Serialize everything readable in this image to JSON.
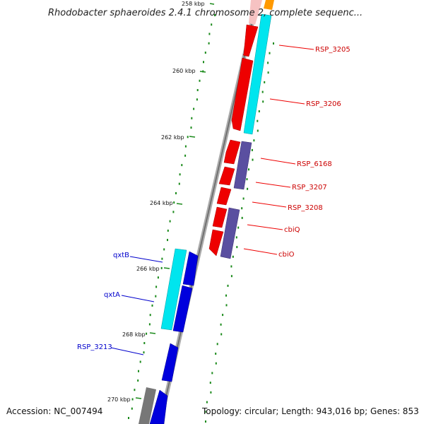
{
  "title": "Rhodobacter sphaeroides 2.4.1 chromosome 2, complete sequenc...",
  "footer": {
    "accession": "Accession: NC_007494",
    "summary": "Topology: circular; Length: 943,016 bp; Genes: 853"
  },
  "ticks": [
    {
      "label": "258 kbp",
      "kbp": 258
    },
    {
      "label": "260 kbp",
      "kbp": 260
    },
    {
      "label": "262 kbp",
      "kbp": 262
    },
    {
      "label": "264 kbp",
      "kbp": 264
    },
    {
      "label": "266 kbp",
      "kbp": 266
    },
    {
      "label": "268 kbp",
      "kbp": 268
    },
    {
      "label": "270 kbp",
      "kbp": 270
    }
  ],
  "labels": [
    {
      "text": "RSP_3205",
      "strand": "forward"
    },
    {
      "text": "RSP_3206",
      "strand": "forward"
    },
    {
      "text": "RSP_6168",
      "strand": "forward"
    },
    {
      "text": "RSP_3207",
      "strand": "forward"
    },
    {
      "text": "RSP_3208",
      "strand": "forward"
    },
    {
      "text": "cbiQ",
      "strand": "forward"
    },
    {
      "text": "cbiO",
      "strand": "forward"
    },
    {
      "text": "qxtB",
      "strand": "reverse"
    },
    {
      "text": "qxtA",
      "strand": "reverse"
    },
    {
      "text": "RSP_3213",
      "strand": "reverse"
    }
  ],
  "colors": {
    "forward_gene": "#ee0000",
    "reverse_gene": "#0000dd",
    "orf": "#00e5ee",
    "cds_purple": "#5a4fa0",
    "backbone": "#999999",
    "gc_dots": "#1b8a1b",
    "pale_gene": "#f6c2c2",
    "orange_gene": "#ff9900",
    "gray_feature": "#777777"
  }
}
